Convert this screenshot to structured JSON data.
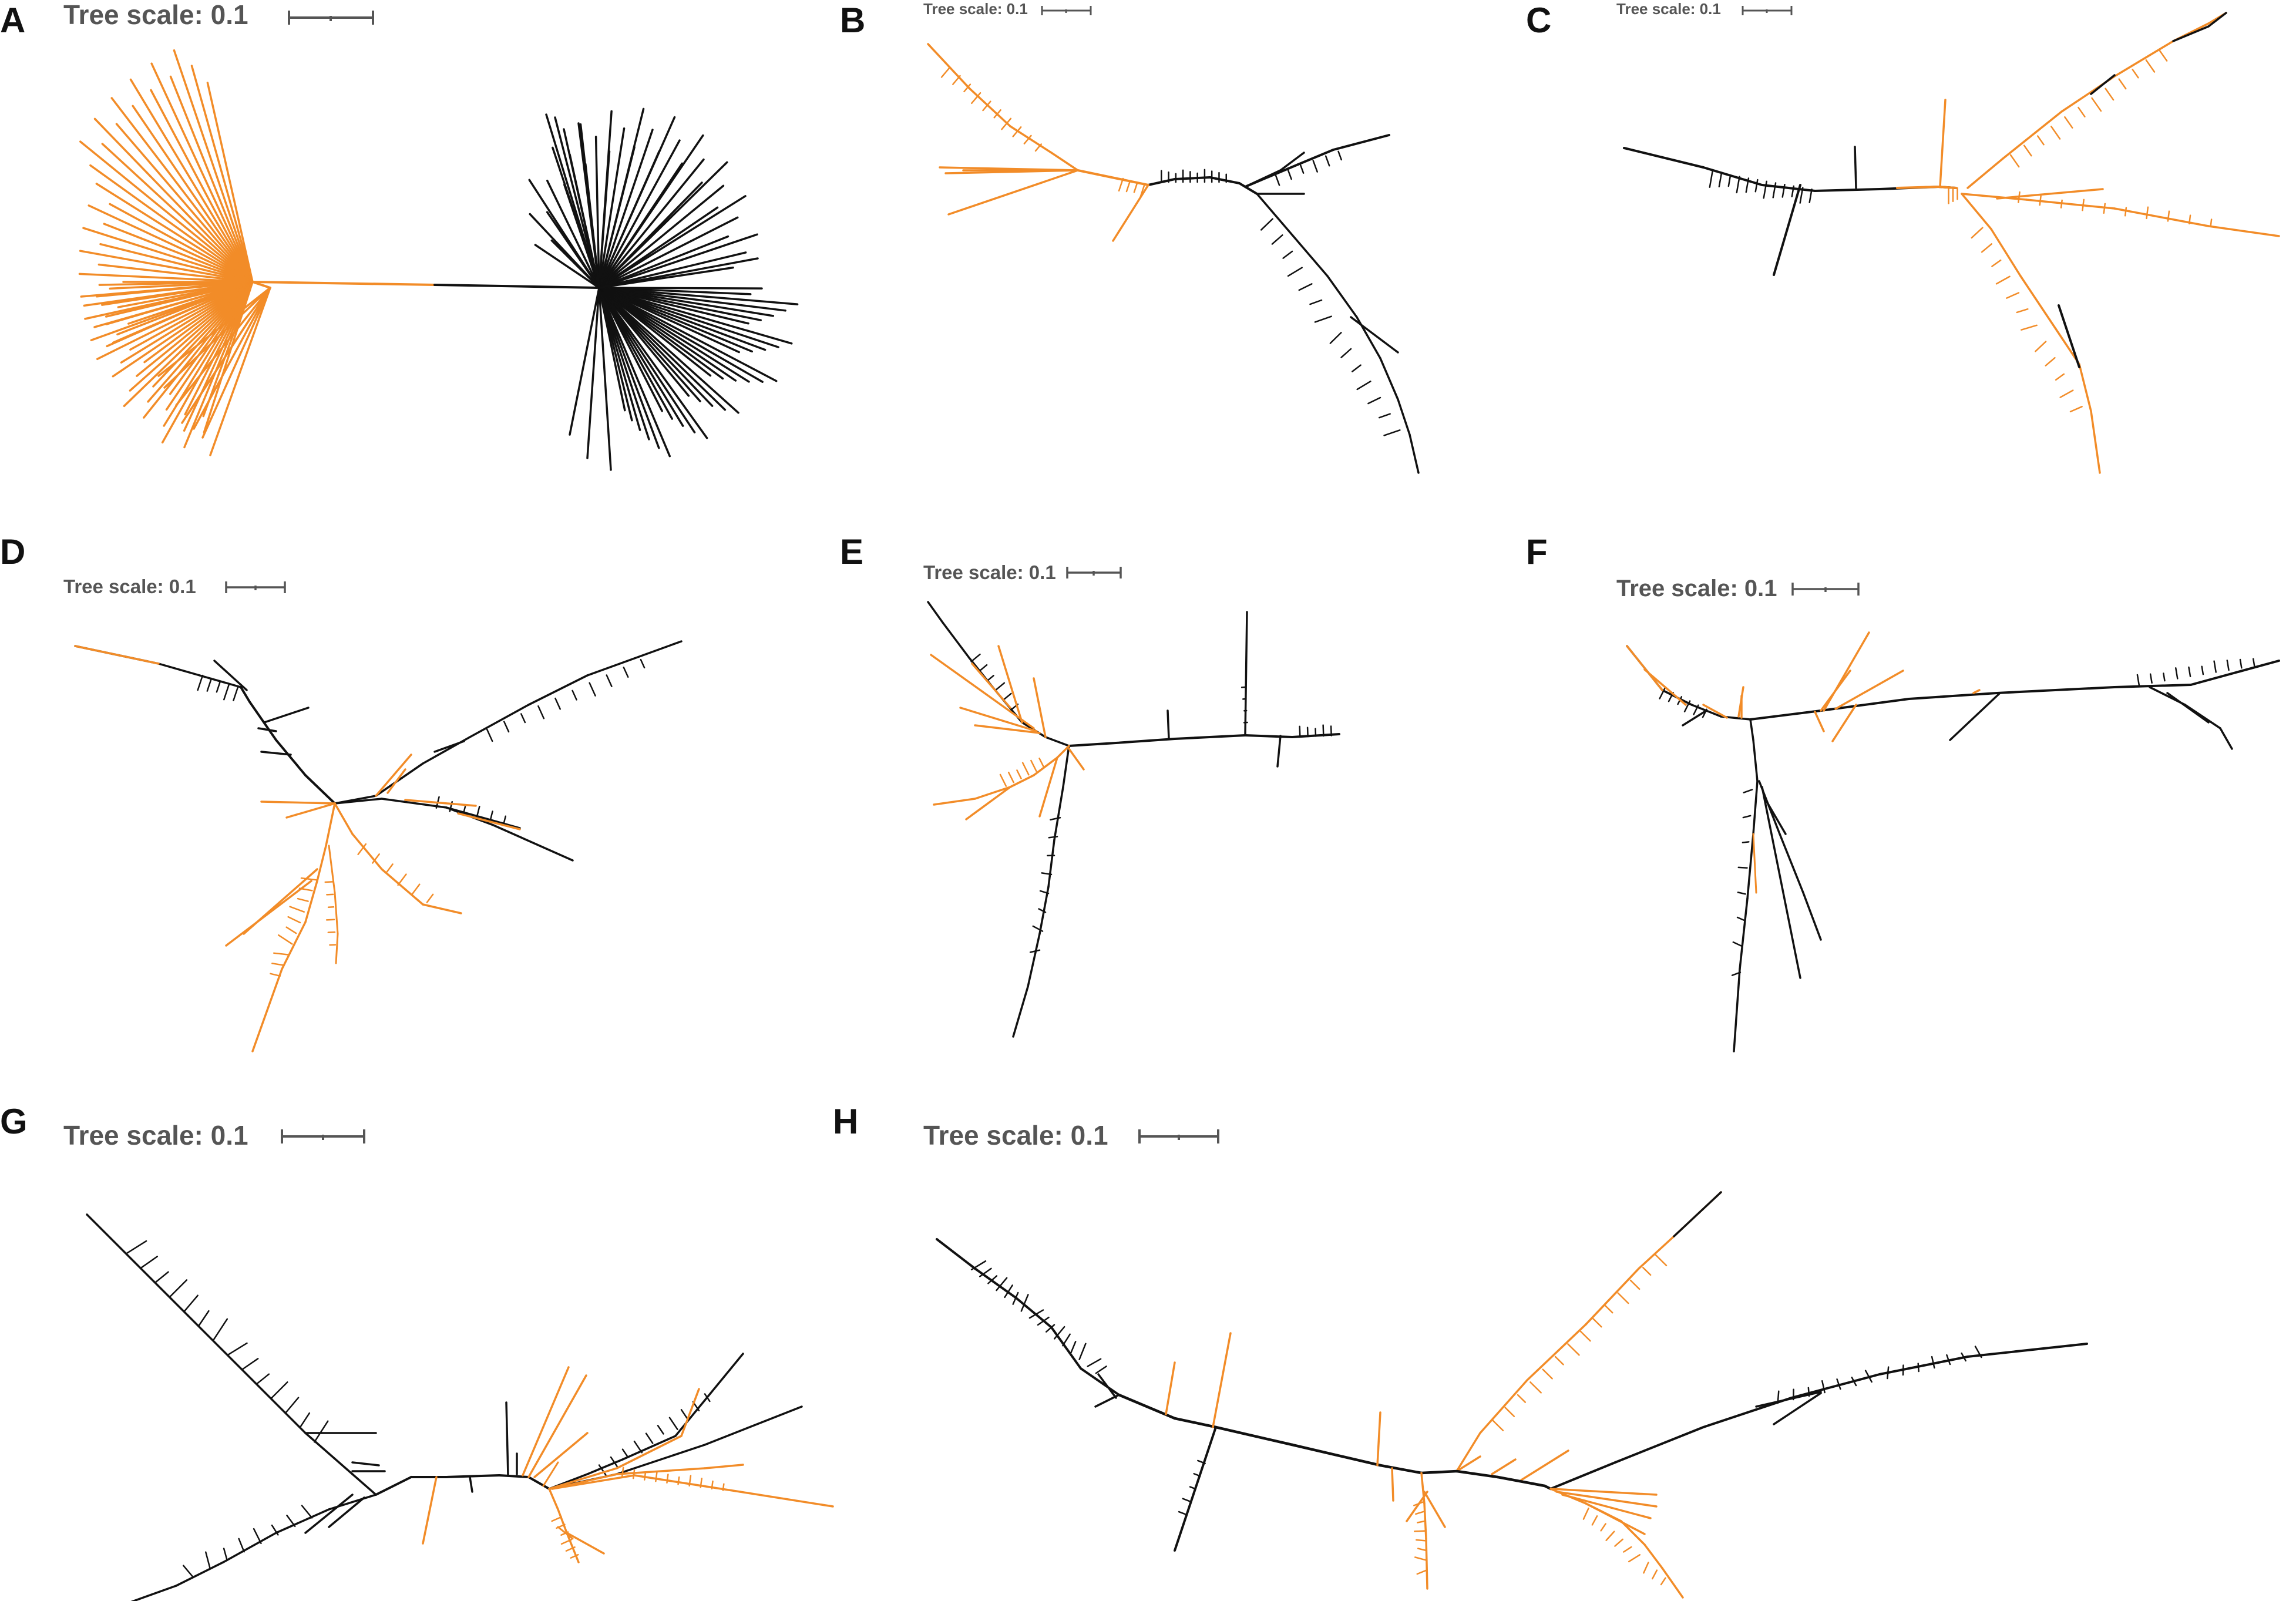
{
  "figure": {
    "colors": {
      "orange": "#f28c28",
      "black": "#111111",
      "label_gray": "#555555"
    },
    "panels": [
      {
        "id": "A",
        "letter": "A",
        "scale_text": "Tree scale: 0.1"
      },
      {
        "id": "B",
        "letter": "B",
        "scale_text": "Tree scale: 0.1"
      },
      {
        "id": "C",
        "letter": "C",
        "scale_text": "Tree scale: 0.1"
      },
      {
        "id": "D",
        "letter": "D",
        "scale_text": "Tree scale: 0.1"
      },
      {
        "id": "E",
        "letter": "E",
        "scale_text": "Tree scale: 0.1"
      },
      {
        "id": "F",
        "letter": "F",
        "scale_text": "Tree scale: 0.1"
      },
      {
        "id": "G",
        "letter": "G",
        "scale_text": "Tree scale: 0.1"
      },
      {
        "id": "H",
        "letter": "H",
        "scale_text": "Tree scale: 0.1"
      }
    ]
  }
}
